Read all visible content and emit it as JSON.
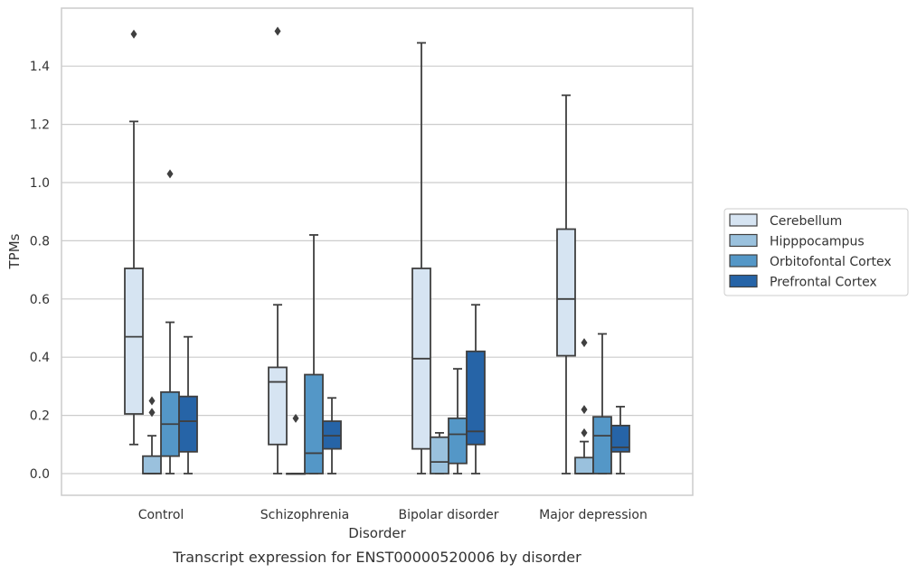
{
  "chart_data": {
    "type": "box",
    "caption": "Transcript expression for ENST00000520006 by disorder",
    "xlabel": "Disorder",
    "ylabel": "TPMs",
    "ylim": [
      -0.07,
      1.59
    ],
    "yticks": [
      "0.0",
      "0.2",
      "0.4",
      "0.6",
      "0.8",
      "1.0",
      "1.2",
      "1.4"
    ],
    "categories": [
      "Control",
      "Schizophrenia",
      "Bipolar disorder",
      "Major depression"
    ],
    "grid": "horizontal",
    "legend_position": "right",
    "series": [
      {
        "name": "Cerebellum",
        "color": "#d6e4f2",
        "boxes": [
          {
            "q1": 0.205,
            "median": 0.47,
            "q3": 0.705,
            "whisker_low": 0.1,
            "whisker_high": 1.21,
            "outliers": [
              1.51
            ]
          },
          {
            "q1": 0.1,
            "median": 0.315,
            "q3": 0.365,
            "whisker_low": 0.0,
            "whisker_high": 0.58,
            "outliers": [
              1.52
            ]
          },
          {
            "q1": 0.085,
            "median": 0.395,
            "q3": 0.705,
            "whisker_low": 0.0,
            "whisker_high": 1.48,
            "outliers": []
          },
          {
            "q1": 0.405,
            "median": 0.6,
            "q3": 0.84,
            "whisker_low": 0.0,
            "whisker_high": 1.3,
            "outliers": []
          }
        ]
      },
      {
        "name": "Hipppocampus",
        "color": "#9ac1dd",
        "boxes": [
          {
            "q1": 0.0,
            "median": 0.0,
            "q3": 0.06,
            "whisker_low": 0.0,
            "whisker_high": 0.13,
            "outliers": [
              0.21,
              0.25
            ]
          },
          {
            "q1": 0.0,
            "median": 0.0,
            "q3": 0.0,
            "whisker_low": 0.0,
            "whisker_high": 0.0,
            "outliers": [
              0.19
            ]
          },
          {
            "q1": 0.0,
            "median": 0.04,
            "q3": 0.125,
            "whisker_low": 0.0,
            "whisker_high": 0.14,
            "outliers": []
          },
          {
            "q1": 0.0,
            "median": 0.0,
            "q3": 0.055,
            "whisker_low": 0.0,
            "whisker_high": 0.11,
            "outliers": [
              0.14,
              0.22,
              0.45
            ]
          }
        ]
      },
      {
        "name": "Orbitofontal Cortex",
        "color": "#5497c7",
        "boxes": [
          {
            "q1": 0.06,
            "median": 0.17,
            "q3": 0.28,
            "whisker_low": 0.0,
            "whisker_high": 0.52,
            "outliers": [
              1.03
            ]
          },
          {
            "q1": 0.0,
            "median": 0.07,
            "q3": 0.34,
            "whisker_low": 0.0,
            "whisker_high": 0.82,
            "outliers": []
          },
          {
            "q1": 0.035,
            "median": 0.135,
            "q3": 0.19,
            "whisker_low": 0.0,
            "whisker_high": 0.36,
            "outliers": []
          },
          {
            "q1": 0.0,
            "median": 0.13,
            "q3": 0.195,
            "whisker_low": 0.0,
            "whisker_high": 0.48,
            "outliers": []
          }
        ]
      },
      {
        "name": "Prefrontal Cortex",
        "color": "#2664a7",
        "boxes": [
          {
            "q1": 0.075,
            "median": 0.18,
            "q3": 0.265,
            "whisker_low": 0.0,
            "whisker_high": 0.47,
            "outliers": []
          },
          {
            "q1": 0.085,
            "median": 0.13,
            "q3": 0.18,
            "whisker_low": 0.0,
            "whisker_high": 0.26,
            "outliers": []
          },
          {
            "q1": 0.1,
            "median": 0.145,
            "q3": 0.42,
            "whisker_low": 0.0,
            "whisker_high": 0.58,
            "outliers": []
          },
          {
            "q1": 0.075,
            "median": 0.09,
            "q3": 0.165,
            "whisker_low": 0.0,
            "whisker_high": 0.23,
            "outliers": []
          }
        ]
      }
    ]
  }
}
